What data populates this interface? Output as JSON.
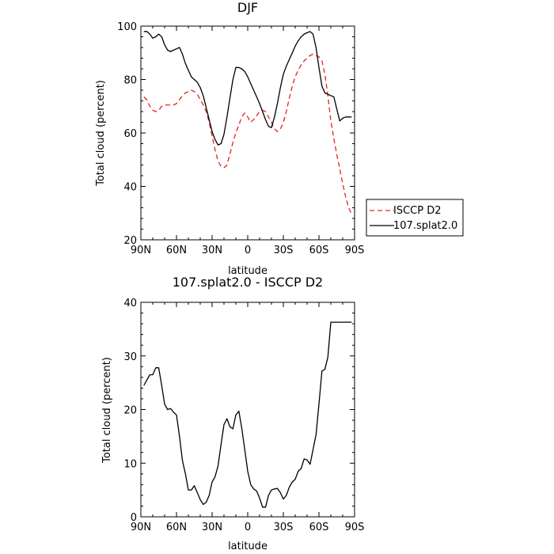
{
  "chart_data": [
    {
      "type": "line",
      "title": "DJF",
      "xlabel": "latitude",
      "ylabel": "Total cloud (percent)",
      "xlim": [
        -90,
        90
      ],
      "ylim": [
        20,
        100
      ],
      "x_ticks": [
        -90,
        -60,
        -30,
        0,
        30,
        60,
        90
      ],
      "x_tick_labels": [
        "90N",
        "60N",
        "30N",
        "0",
        "30S",
        "60S",
        "90S"
      ],
      "y_ticks": [
        20,
        40,
        60,
        80,
        100
      ],
      "y_tick_labels": [
        "20",
        "40",
        "60",
        "80",
        "100"
      ],
      "legend_position": "right",
      "series": [
        {
          "name": "ISCCP D2",
          "color": "#e8201c",
          "dash": "dashed",
          "x": [
            -87.5,
            -85,
            -82.5,
            -80,
            -77.5,
            -75,
            -72.5,
            -70,
            -67.5,
            -65,
            -62.5,
            -60,
            -57.5,
            -55,
            -52.5,
            -50,
            -47.5,
            -45,
            -42.5,
            -40,
            -37.5,
            -35,
            -32.5,
            -30,
            -27.5,
            -25,
            -22.5,
            -20,
            -17.5,
            -15,
            -12.5,
            -10,
            -7.5,
            -5,
            -2.5,
            0,
            2.5,
            5,
            7.5,
            10,
            12.5,
            15,
            17.5,
            20,
            22.5,
            25,
            27.5,
            30,
            32.5,
            35,
            37.5,
            40,
            42.5,
            45,
            47.5,
            50,
            52.5,
            55,
            57.5,
            60,
            62.5,
            65,
            67.5,
            70,
            72.5,
            75,
            77.5,
            80,
            82.5,
            85,
            87.5
          ],
          "values": [
            73.5,
            72.5,
            70,
            68.5,
            68,
            68.5,
            70,
            70.5,
            70.5,
            70.5,
            70.5,
            71,
            72.5,
            74,
            75,
            75.5,
            76,
            75.5,
            74.5,
            72.5,
            70.5,
            68,
            64,
            59,
            53.5,
            49.5,
            47.5,
            47,
            48,
            52,
            56.5,
            60,
            63,
            66,
            67.5,
            66,
            64,
            65,
            66.5,
            68,
            68.5,
            68,
            66,
            64,
            61.5,
            60.5,
            61.5,
            64,
            68,
            73,
            77.5,
            81,
            83.5,
            85.5,
            87,
            88,
            89,
            89.5,
            89,
            88.5,
            87,
            82,
            74,
            64.5,
            58,
            52,
            46.5,
            41,
            36,
            32,
            29.5
          ]
        },
        {
          "name": "107.splat2.0",
          "color": "#000000",
          "dash": "solid",
          "x": [
            -87.5,
            -85,
            -82.5,
            -80,
            -77.5,
            -75,
            -72.5,
            -70,
            -67.5,
            -65,
            -62.5,
            -60,
            -57.5,
            -55,
            -52.5,
            -50,
            -47.5,
            -45,
            -42.5,
            -40,
            -37.5,
            -35,
            -32.5,
            -30,
            -27.5,
            -25,
            -22.5,
            -20,
            -17.5,
            -15,
            -12.5,
            -10,
            -7.5,
            -5,
            -2.5,
            0,
            2.5,
            5,
            7.5,
            10,
            12.5,
            15,
            17.5,
            20,
            22.5,
            25,
            27.5,
            30,
            32.5,
            35,
            37.5,
            40,
            42.5,
            45,
            47.5,
            50,
            52.5,
            55,
            57.5,
            60,
            62.5,
            65,
            67.5,
            70,
            72.5,
            75,
            77.5,
            80,
            82.5,
            85,
            87.5
          ],
          "values": [
            98,
            98,
            97,
            95.5,
            96,
            97,
            96,
            93,
            91,
            90.5,
            91,
            91.5,
            92,
            89.5,
            86,
            83.5,
            81,
            80,
            79,
            77,
            74,
            69.5,
            65,
            60.5,
            57.5,
            55.5,
            56,
            59.5,
            66,
            73,
            80,
            84.5,
            84.5,
            84,
            83,
            81,
            78.5,
            76,
            73.5,
            71,
            68,
            65,
            62.5,
            62,
            66,
            71,
            77,
            82,
            85,
            87.5,
            90,
            92.5,
            94.5,
            96,
            97,
            97.5,
            98,
            97,
            92,
            84.5,
            77.5,
            75,
            74.5,
            74,
            73.5,
            69,
            64.5,
            65.5,
            66,
            66,
            66
          ]
        }
      ]
    },
    {
      "type": "line",
      "title": "107.splat2.0 - ISCCP D2",
      "xlabel": "latitude",
      "ylabel": "Total cloud (percent)",
      "xlim": [
        -90,
        90
      ],
      "ylim": [
        0,
        40
      ],
      "x_ticks": [
        -90,
        -60,
        -30,
        0,
        30,
        60,
        90
      ],
      "x_tick_labels": [
        "90N",
        "60N",
        "30N",
        "0",
        "30S",
        "60S",
        "90S"
      ],
      "y_ticks": [
        0,
        10,
        20,
        30,
        40
      ],
      "y_tick_labels": [
        "0",
        "10",
        "20",
        "30",
        "40"
      ],
      "series": [
        {
          "color": "#000000",
          "dash": "solid",
          "x": [
            -87.5,
            -85,
            -82.5,
            -80,
            -77.5,
            -75,
            -72.5,
            -70,
            -67.5,
            -65,
            -62.5,
            -60,
            -57.5,
            -55,
            -52.5,
            -50,
            -47.5,
            -45,
            -42.5,
            -40,
            -37.5,
            -35,
            -32.5,
            -30,
            -27.5,
            -25,
            -22.5,
            -20,
            -17.5,
            -15,
            -12.5,
            -10,
            -7.5,
            -5,
            -2.5,
            0,
            2.5,
            5,
            7.5,
            10,
            12.5,
            15,
            17.5,
            20,
            22.5,
            25,
            27.5,
            30,
            32.5,
            35,
            37.5,
            40,
            42.5,
            45,
            47.5,
            50,
            52.5,
            55,
            57.5,
            60,
            62.5,
            65,
            67.5,
            70,
            72.5,
            75,
            77.5,
            80,
            82.5,
            85,
            87.5
          ],
          "values": [
            24.5,
            25.5,
            26.5,
            26.5,
            27.8,
            27.8,
            24.5,
            21,
            20,
            20.2,
            19.5,
            19,
            15,
            10.5,
            8,
            5,
            5,
            5.8,
            4.5,
            3.2,
            2.3,
            2.7,
            4,
            6.5,
            7.5,
            9.5,
            13.5,
            17.2,
            18.3,
            16.8,
            16.4,
            19,
            19.7,
            16.5,
            12.5,
            8.5,
            6,
            5.2,
            4.8,
            3.5,
            1.8,
            1.8,
            4,
            5,
            5.2,
            5.3,
            4.5,
            3.3,
            4,
            5.5,
            6.5,
            7,
            8.5,
            9,
            10.8,
            10.6,
            9.8,
            12.5,
            15.3,
            21,
            27.2,
            27.5,
            29.8,
            36.3,
            36.3,
            36.3,
            36.3,
            36.3,
            36.3,
            36.3,
            36.3
          ]
        }
      ]
    }
  ]
}
